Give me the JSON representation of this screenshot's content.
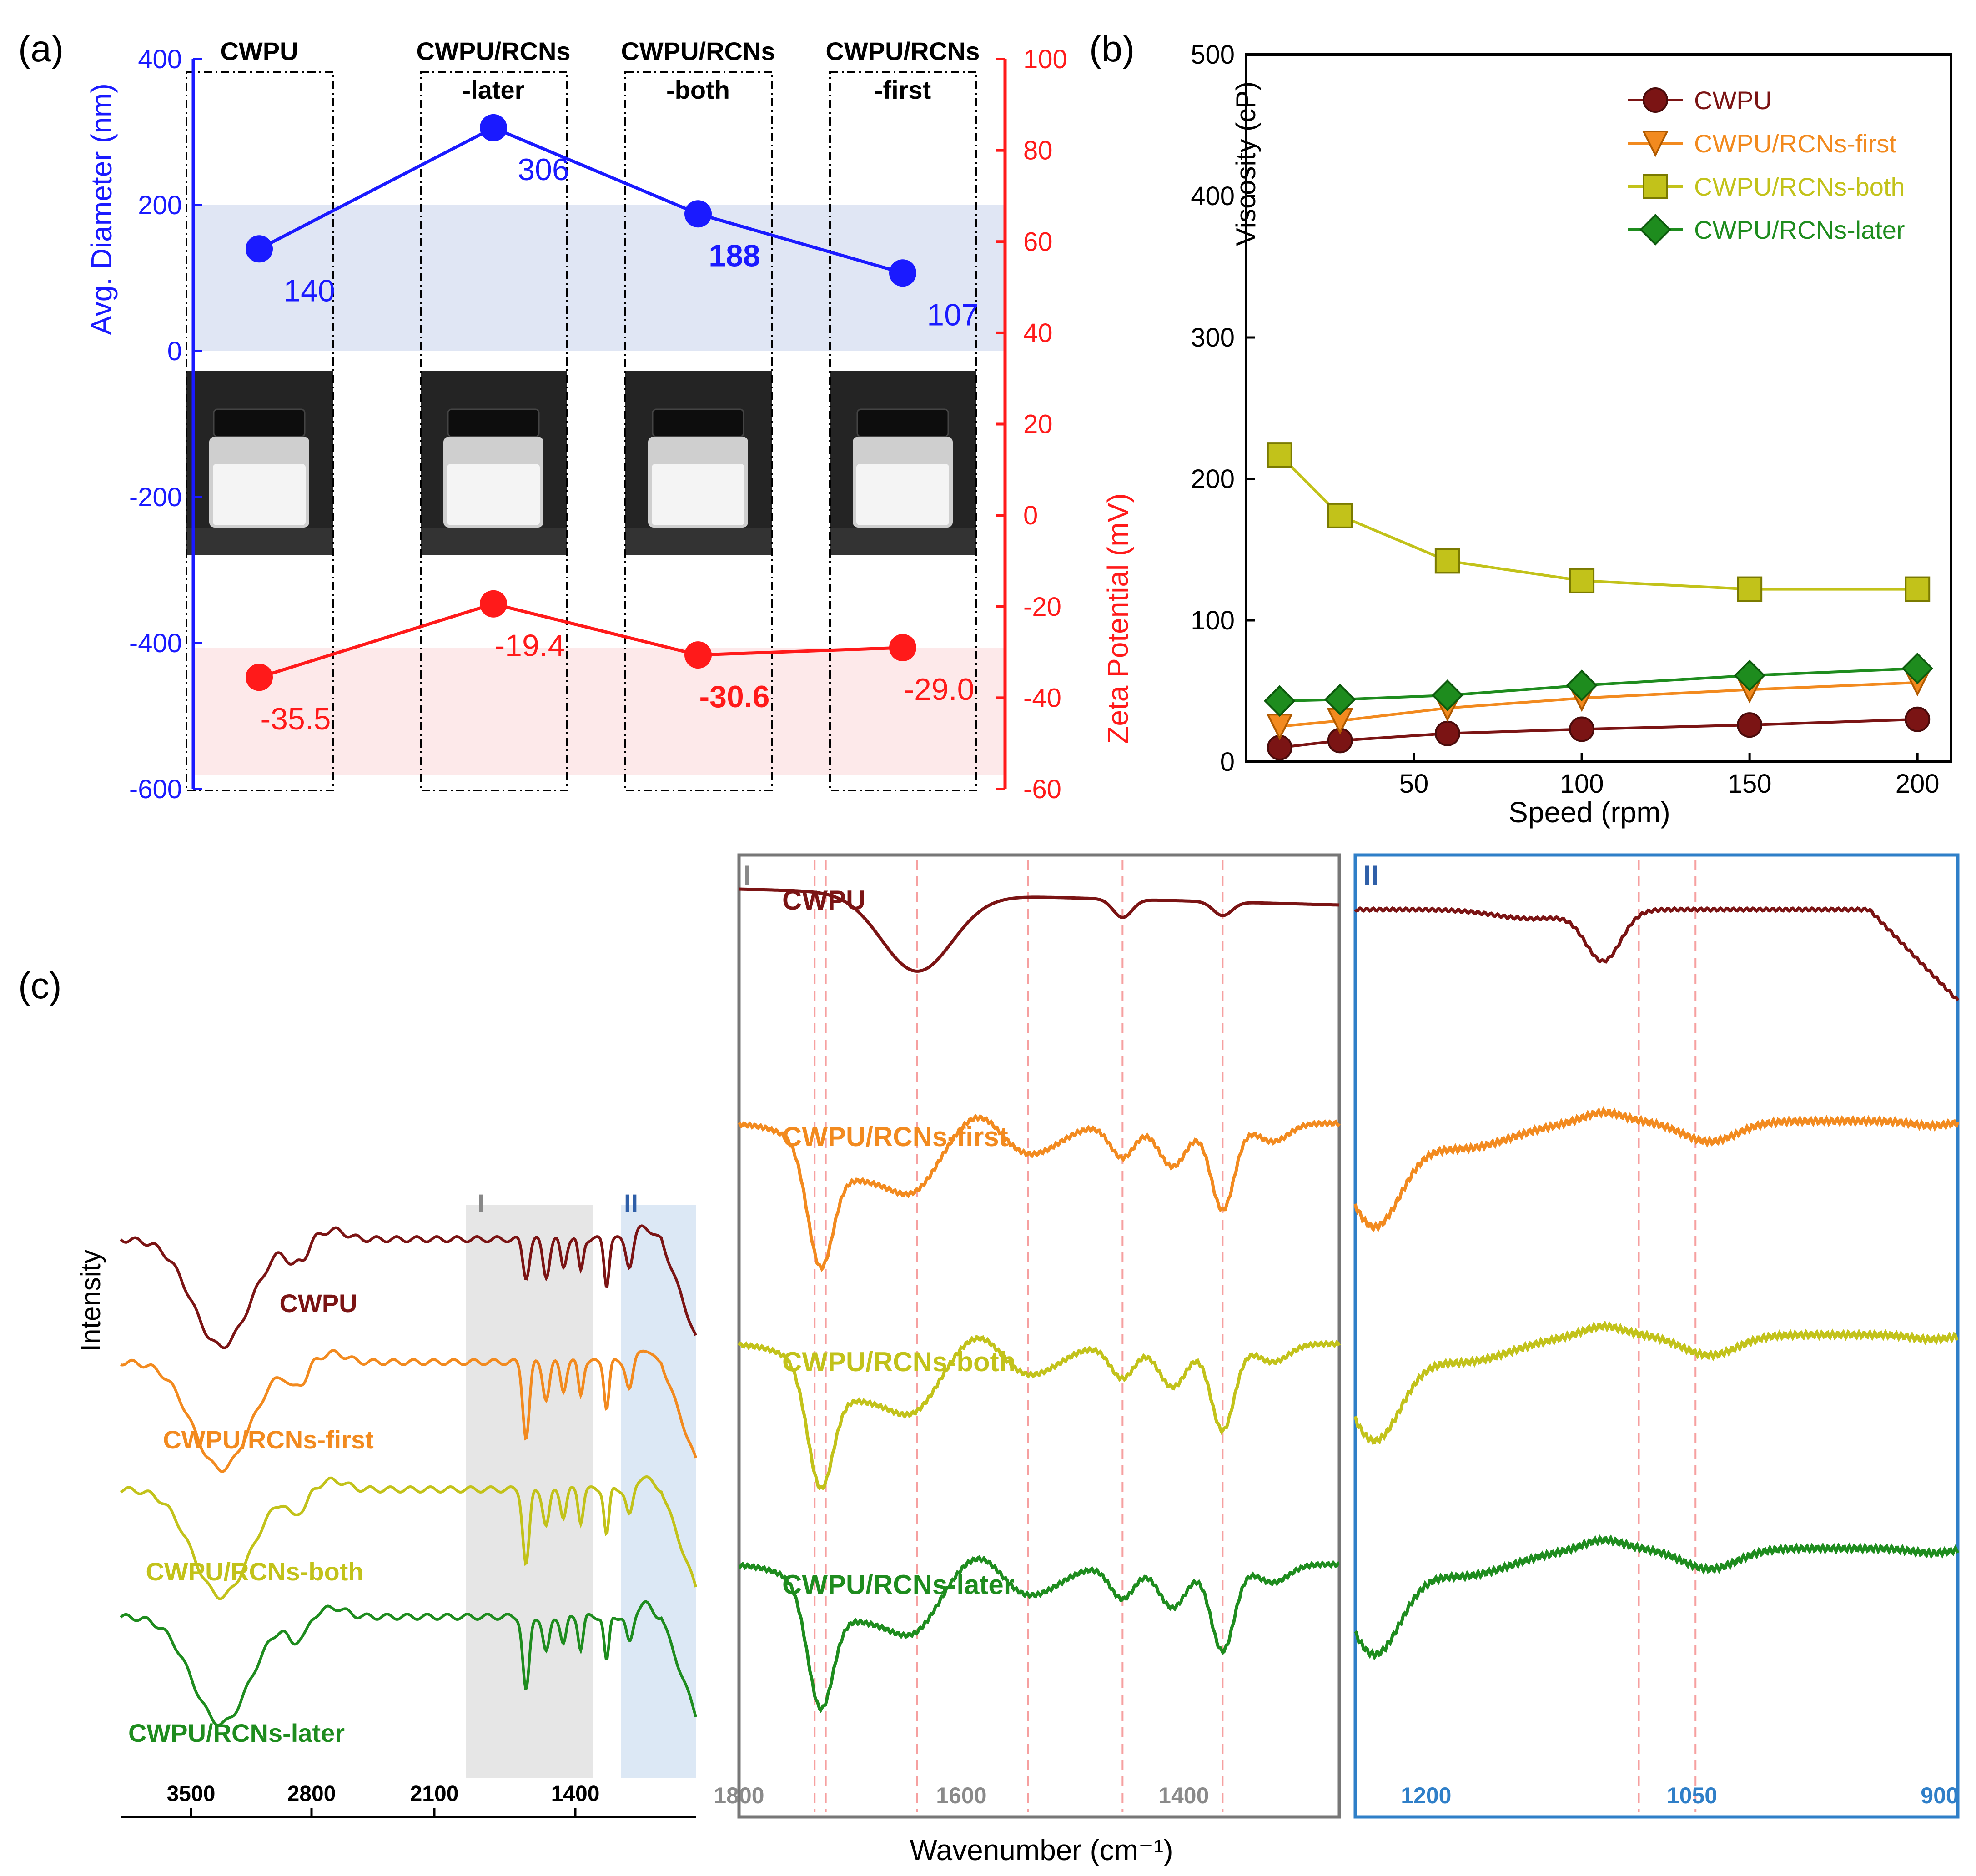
{
  "panels": {
    "a": {
      "label": "(a)",
      "groups": [
        "CWPU",
        "CWPU/RCNs-later",
        "CWPU/RCNs-both",
        "CWPU/RCNs-first"
      ],
      "group_header_lines": [
        [
          "CWPU"
        ],
        [
          "CWPU/RCNs",
          "-later"
        ],
        [
          "CWPU/RCNs",
          "-both"
        ],
        [
          "CWPU/RCNs",
          "-first"
        ]
      ],
      "left_axis_label": "Avg. Diameter (nm)",
      "right_axis_label": "Zeta Potential (mV)",
      "left_ticks": [
        "400",
        "200",
        "0",
        "-200",
        "-400",
        "-600"
      ],
      "right_ticks": [
        "100",
        "80",
        "60",
        "40",
        "20",
        "0",
        "-20",
        "-40",
        "-60"
      ],
      "diameter_labels": [
        "140",
        "306",
        "188",
        "107"
      ],
      "zeta_labels": [
        "-35.5",
        "-19.4",
        "-30.6",
        "-29.0"
      ]
    },
    "b": {
      "label": "(b)",
      "xlabel": "Speed (rpm)",
      "ylabel": "Viscosity  (cP)",
      "xticks": [
        "50",
        "100",
        "150",
        "200"
      ],
      "yticks": [
        "0",
        "100",
        "200",
        "300",
        "400",
        "500"
      ]
    },
    "c": {
      "label": "(c)",
      "ylabel": "Intensity",
      "xlabel": "Wavenumber (cm⁻¹)",
      "full_ticks": [
        "3500",
        "2800",
        "2100",
        "1400"
      ],
      "region_I_label": "I",
      "region_II_label": "II",
      "zoom_I_ticks": [
        "1800",
        "1600",
        "1400"
      ],
      "zoom_II_ticks": [
        "1200",
        "1050",
        "900"
      ],
      "series_labels": [
        "CWPU",
        "CWPU/RCNs-first",
        "CWPU/RCNs-both",
        "CWPU/RCNs-later"
      ]
    }
  },
  "colors": {
    "blue": "#1a1aff",
    "red": "#ff1a1a",
    "CWPU": "#7b1414",
    "first": "#f28a1f",
    "both": "#c2c21a",
    "later": "#1e8c1e",
    "region_I": "#e6e6e6",
    "region_II": "#dce8f5",
    "box_II": "#2f7fc8",
    "box_I": "#777777"
  },
  "chart_data": [
    {
      "type": "line",
      "panel": "a",
      "categories": [
        "CWPU",
        "CWPU/RCNs-later",
        "CWPU/RCNs-both",
        "CWPU/RCNs-first"
      ],
      "series": [
        {
          "name": "Avg. Diameter (nm)",
          "axis": "left",
          "values": [
            140,
            306,
            188,
            107
          ]
        },
        {
          "name": "Zeta Potential (mV)",
          "axis": "right",
          "values": [
            -35.5,
            -19.4,
            -30.6,
            -29.0
          ]
        }
      ],
      "left_ylim": [
        -600,
        400
      ],
      "right_ylim": [
        -60,
        100
      ],
      "bands": [
        {
          "axis": "left",
          "range": [
            0,
            200
          ],
          "color": "#e0e6f4"
        },
        {
          "axis": "right",
          "range": [
            -57,
            -29
          ],
          "color": "#fde9ea"
        }
      ]
    },
    {
      "type": "line",
      "panel": "b",
      "xlabel": "Speed (rpm)",
      "ylabel": "Viscosity  (cP)",
      "xlim": [
        0,
        210
      ],
      "ylim": [
        0,
        500
      ],
      "legend": "top-right",
      "series": [
        {
          "name": "CWPU",
          "marker": "circle",
          "x": [
            10,
            28,
            60,
            100,
            150,
            200
          ],
          "values": [
            10,
            15,
            20,
            23,
            26,
            30
          ]
        },
        {
          "name": "CWPU/RCNs-first",
          "marker": "triangle-down",
          "x": [
            10,
            28,
            60,
            100,
            150,
            200
          ],
          "values": [
            25,
            29,
            38,
            45,
            51,
            56
          ]
        },
        {
          "name": "CWPU/RCNs-both",
          "marker": "square",
          "x": [
            10,
            28,
            60,
            100,
            150,
            200
          ],
          "values": [
            217,
            174,
            142,
            128,
            122,
            122
          ]
        },
        {
          "name": "CWPU/RCNs-later",
          "marker": "diamond",
          "x": [
            10,
            28,
            60,
            100,
            150,
            200
          ],
          "values": [
            43,
            44,
            47,
            54,
            61,
            66
          ]
        }
      ]
    },
    {
      "type": "line",
      "panel": "c",
      "xlabel": "Wavenumber (cm⁻¹)",
      "ylabel": "Intensity",
      "x_reversed": true,
      "series": [
        {
          "name": "CWPU"
        },
        {
          "name": "CWPU/RCNs-first"
        },
        {
          "name": "CWPU/RCNs-both"
        },
        {
          "name": "CWPU/RCNs-later"
        }
      ],
      "zoom_regions": [
        {
          "name": "I",
          "xlim": [
            1800,
            1260
          ]
        },
        {
          "name": "II",
          "xlim": [
            1240,
            900
          ]
        }
      ],
      "reference_lines_I": [
        1732,
        1722,
        1640,
        1540,
        1455,
        1365
      ],
      "reference_lines_II": [
        1080,
        1048
      ]
    }
  ]
}
